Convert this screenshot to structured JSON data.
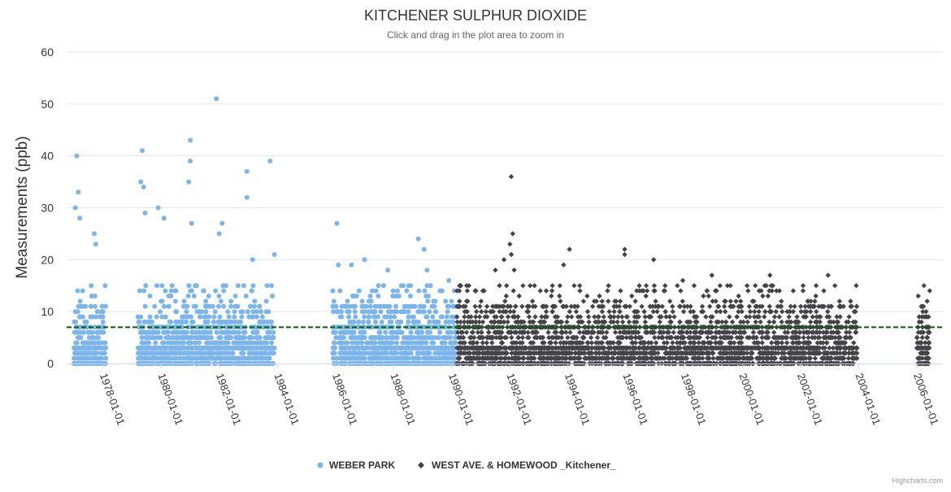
{
  "chart_data": {
    "type": "scatter",
    "title": "KITCHENER SULPHUR DIOXIDE",
    "subtitle": "Click and drag in the plot area to zoom in",
    "ylabel": "Measurements (ppb)",
    "xlabel": "",
    "ylim": [
      0,
      60
    ],
    "yticks": [
      "0",
      "10",
      "20",
      "30",
      "40",
      "50",
      "60"
    ],
    "xlim": [
      1976.75,
      2006.9
    ],
    "xticks": [
      {
        "year": 1978,
        "label": "1978-01-01"
      },
      {
        "year": 1980,
        "label": "1980-01-01"
      },
      {
        "year": 1982,
        "label": "1982-01-01"
      },
      {
        "year": 1984,
        "label": "1984-01-01"
      },
      {
        "year": 1986,
        "label": "1986-01-01"
      },
      {
        "year": 1988,
        "label": "1988-01-01"
      },
      {
        "year": 1990,
        "label": "1990-01-01"
      },
      {
        "year": 1992,
        "label": "1992-01-01"
      },
      {
        "year": 1994,
        "label": "1994-01-01"
      },
      {
        "year": 1996,
        "label": "1996-01-01"
      },
      {
        "year": 1998,
        "label": "1998-01-01"
      },
      {
        "year": 2000,
        "label": "2000-01-01"
      },
      {
        "year": 2002,
        "label": "2002-01-01"
      },
      {
        "year": 2004,
        "label": "2004-01-01"
      },
      {
        "year": 2006,
        "label": "2006-01-01"
      }
    ],
    "reference_line": {
      "value": 7,
      "color": "#006400",
      "style": "dashed"
    },
    "grid": true,
    "legend_position": "bottom-center",
    "series": [
      {
        "name": "WEBER PARK",
        "marker": "circle",
        "color": "#7cb5ec",
        "periods": [
          [
            1977.0,
            1978.1
          ],
          [
            1979.2,
            1983.9
          ],
          [
            1985.9,
            1990.15
          ]
        ],
        "outliers": [
          {
            "x": 1977.1,
            "y": 40
          },
          {
            "x": 1977.15,
            "y": 33
          },
          {
            "x": 1977.05,
            "y": 30
          },
          {
            "x": 1977.2,
            "y": 28
          },
          {
            "x": 1977.7,
            "y": 25
          },
          {
            "x": 1977.75,
            "y": 23
          },
          {
            "x": 1979.35,
            "y": 41
          },
          {
            "x": 1979.3,
            "y": 35
          },
          {
            "x": 1979.4,
            "y": 34
          },
          {
            "x": 1979.45,
            "y": 29
          },
          {
            "x": 1979.9,
            "y": 30
          },
          {
            "x": 1980.1,
            "y": 28
          },
          {
            "x": 1981.0,
            "y": 43
          },
          {
            "x": 1981.0,
            "y": 39
          },
          {
            "x": 1980.95,
            "y": 35
          },
          {
            "x": 1981.05,
            "y": 27
          },
          {
            "x": 1981.9,
            "y": 51
          },
          {
            "x": 1982.1,
            "y": 27
          },
          {
            "x": 1982.0,
            "y": 25
          },
          {
            "x": 1982.95,
            "y": 37
          },
          {
            "x": 1982.95,
            "y": 32
          },
          {
            "x": 1983.15,
            "y": 20
          },
          {
            "x": 1983.75,
            "y": 39
          },
          {
            "x": 1983.9,
            "y": 21
          },
          {
            "x": 1986.05,
            "y": 27
          },
          {
            "x": 1986.1,
            "y": 19
          },
          {
            "x": 1986.55,
            "y": 19
          },
          {
            "x": 1987.0,
            "y": 20
          },
          {
            "x": 1987.8,
            "y": 18
          },
          {
            "x": 1988.85,
            "y": 24
          },
          {
            "x": 1989.05,
            "y": 22
          },
          {
            "x": 1989.15,
            "y": 18
          },
          {
            "x": 1989.9,
            "y": 16
          }
        ]
      },
      {
        "name": "WEST AVE. & HOMEWOOD _Kitchener_",
        "marker": "diamond",
        "color": "#434348",
        "periods": [
          [
            1990.15,
            2003.95
          ],
          [
            2006.0,
            2006.45
          ]
        ],
        "outliers": [
          {
            "x": 1992.05,
            "y": 36
          },
          {
            "x": 1992.1,
            "y": 25
          },
          {
            "x": 1992.0,
            "y": 23
          },
          {
            "x": 1992.05,
            "y": 21
          },
          {
            "x": 1991.8,
            "y": 20
          },
          {
            "x": 1991.5,
            "y": 18
          },
          {
            "x": 1992.15,
            "y": 18
          },
          {
            "x": 1994.05,
            "y": 22
          },
          {
            "x": 1993.85,
            "y": 19
          },
          {
            "x": 1995.95,
            "y": 22
          },
          {
            "x": 1995.95,
            "y": 21
          },
          {
            "x": 1996.95,
            "y": 20
          },
          {
            "x": 1998.95,
            "y": 17
          },
          {
            "x": 2000.95,
            "y": 17
          },
          {
            "x": 2002.95,
            "y": 17
          },
          {
            "x": 1997.95,
            "y": 16
          },
          {
            "x": 2001.05,
            "y": 15
          },
          {
            "x": 2006.35,
            "y": 7
          }
        ]
      }
    ]
  },
  "credits": "Highcharts.com"
}
